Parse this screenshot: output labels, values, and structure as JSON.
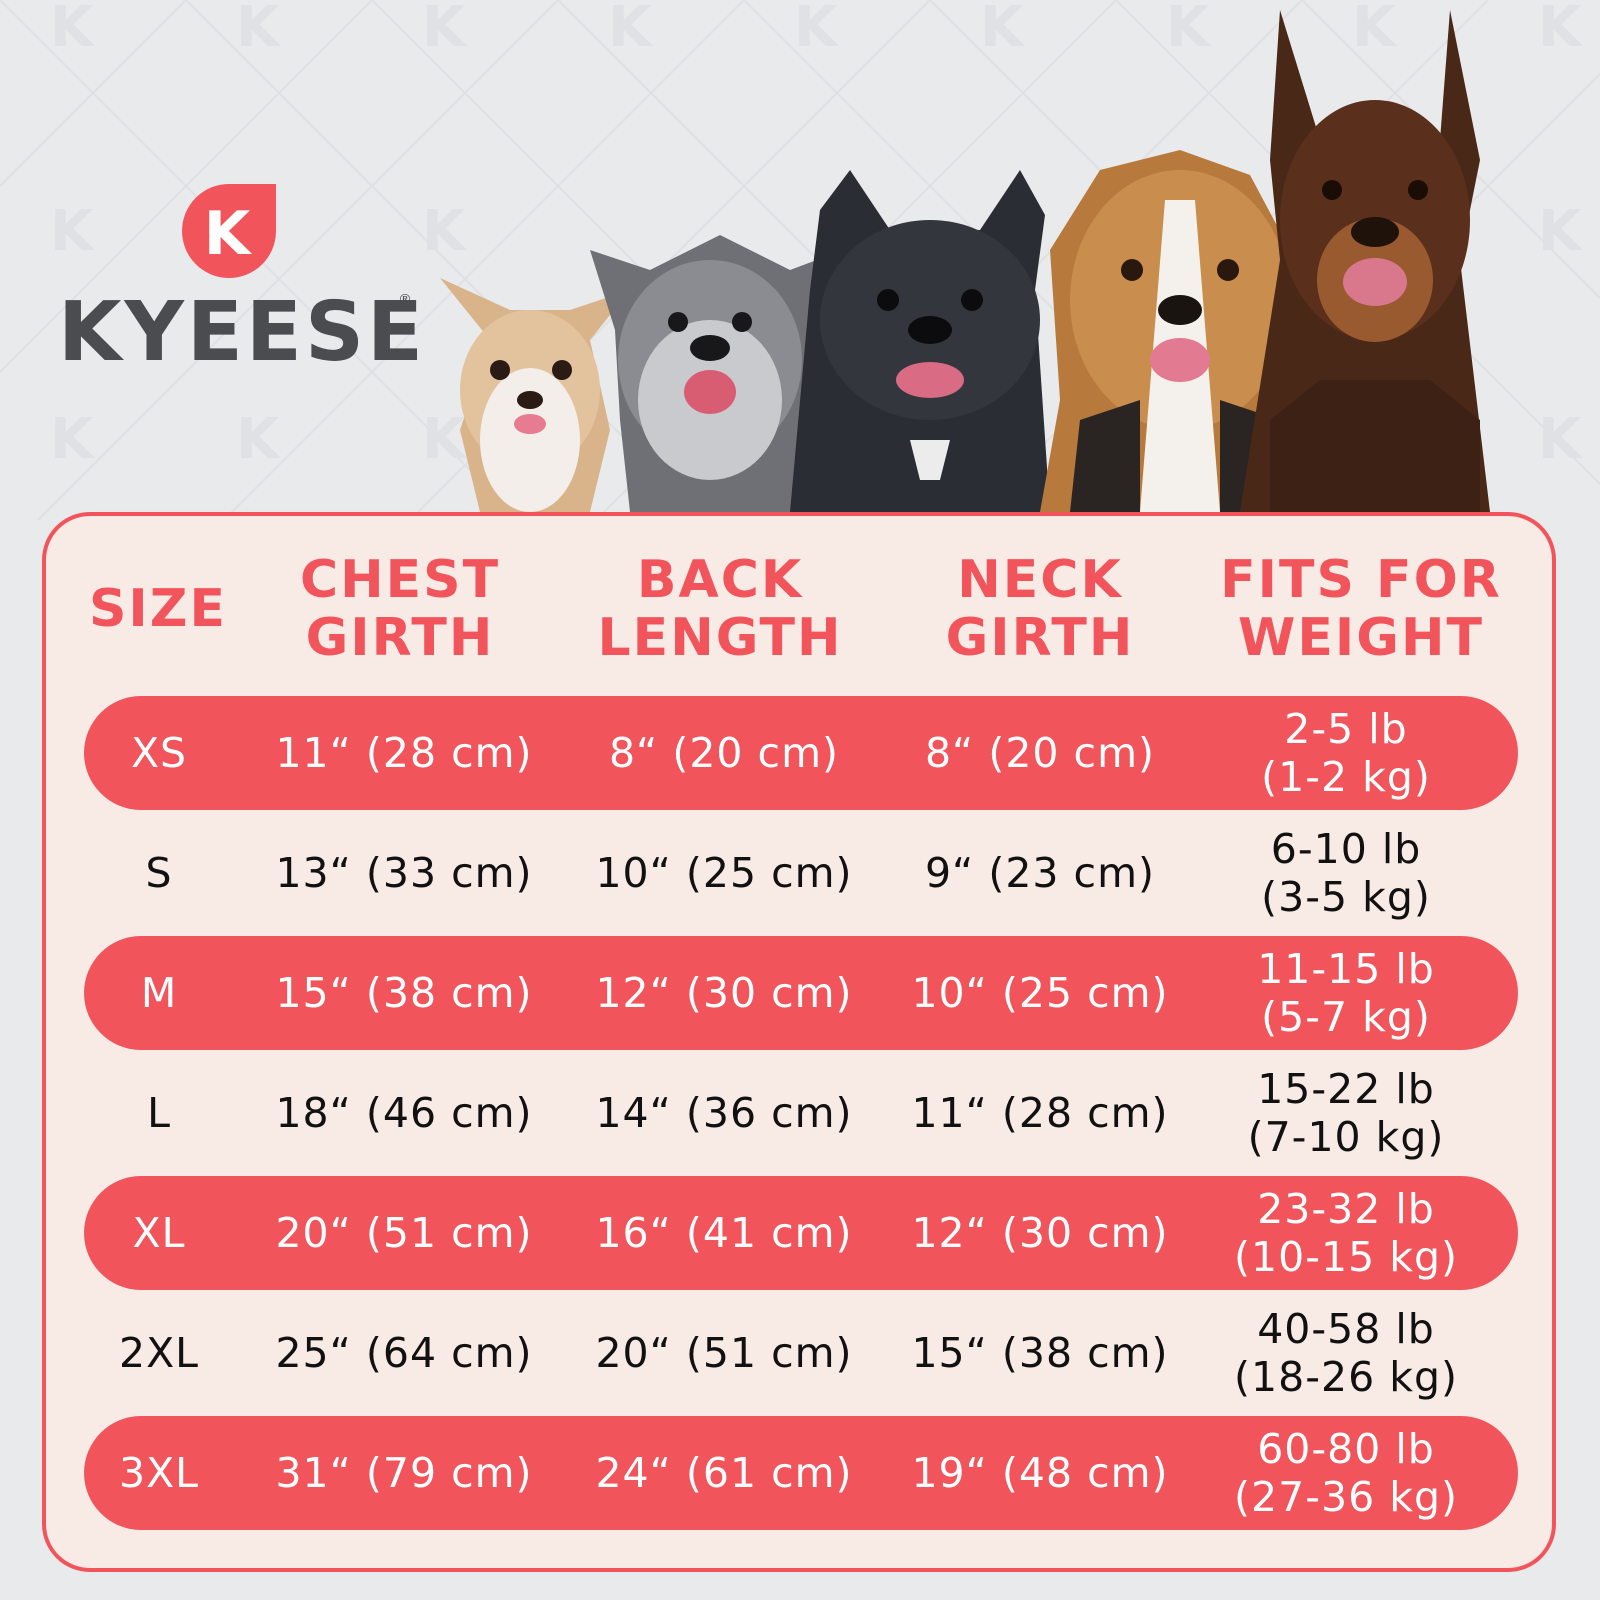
{
  "brand": {
    "logo_letter": "K",
    "name": "KYEESE",
    "registered": "®"
  },
  "colors": {
    "accent": "#f2545b",
    "card_bg": "#f8ebe6",
    "background": "#e9eaec",
    "brand_text": "#4b4c50"
  },
  "images": {
    "dogs": "five dogs, small to large: chihuahua, schnauzer, french bulldog, beagle, doberman"
  },
  "table": {
    "headers": {
      "size": "SIZE",
      "chest": [
        "CHEST",
        "GIRTH"
      ],
      "back": [
        "BACK",
        "LENGTH"
      ],
      "neck": [
        "NECK",
        "GIRTH"
      ],
      "weight": [
        "FITS FOR",
        "WEIGHT"
      ]
    },
    "rows": [
      {
        "size": "XS",
        "chest": "11“ (28 cm)",
        "back": "8“ (20 cm)",
        "neck": "8“ (20 cm)",
        "weight_lb": "2-5 lb",
        "weight_kg": "(1-2 kg)"
      },
      {
        "size": "S",
        "chest": "13“ (33 cm)",
        "back": "10“ (25 cm)",
        "neck": "9“ (23 cm)",
        "weight_lb": "6-10 lb",
        "weight_kg": "(3-5 kg)"
      },
      {
        "size": "M",
        "chest": "15“ (38 cm)",
        "back": "12“ (30 cm)",
        "neck": "10“ (25 cm)",
        "weight_lb": "11-15 lb",
        "weight_kg": "(5-7 kg)"
      },
      {
        "size": "L",
        "chest": "18“ (46 cm)",
        "back": "14“ (36 cm)",
        "neck": "11“ (28 cm)",
        "weight_lb": "15-22 lb",
        "weight_kg": "(7-10 kg)"
      },
      {
        "size": "XL",
        "chest": "20“ (51 cm)",
        "back": "16“ (41 cm)",
        "neck": "12“ (30 cm)",
        "weight_lb": "23-32 lb",
        "weight_kg": "(10-15 kg)"
      },
      {
        "size": "2XL",
        "chest": "25“ (64 cm)",
        "back": "20“ (51 cm)",
        "neck": "15“ (38 cm)",
        "weight_lb": "40-58 lb",
        "weight_kg": "(18-26 kg)"
      },
      {
        "size": "3XL",
        "chest": "31“ (79 cm)",
        "back": "24“ (61 cm)",
        "neck": "19“ (48 cm)",
        "weight_lb": "60-80 lb",
        "weight_kg": "(27-36 kg)"
      }
    ]
  }
}
